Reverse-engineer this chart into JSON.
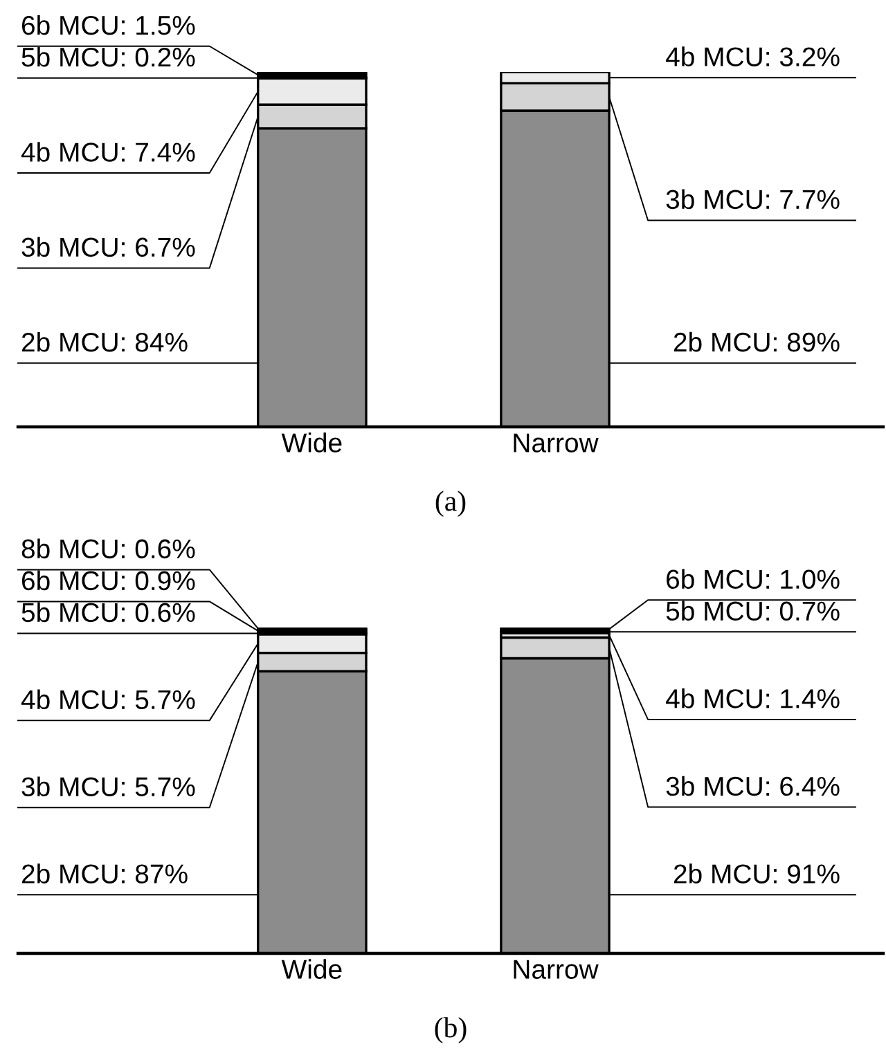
{
  "chart_data": [
    {
      "type": "bar",
      "title": "(a)",
      "categories": [
        "Wide",
        "Narrow"
      ],
      "stacked": true,
      "series": [
        {
          "color": "#8c8c8c",
          "values": [
            84,
            89
          ],
          "value_labels": [
            "2b MCU: 84%",
            "2b MCU: 89%"
          ]
        },
        {
          "color": "#d4d4d4",
          "values": [
            6.7,
            7.7
          ],
          "value_labels": [
            "3b MCU: 6.7%",
            "3b MCU: 7.7%"
          ]
        },
        {
          "color": "#ebebeb",
          "values": [
            7.4,
            3.2
          ],
          "value_labels": [
            "4b MCU: 7.4%",
            "4b MCU: 3.2%"
          ]
        },
        {
          "color": "#ffffff",
          "values": [
            0.2,
            null
          ],
          "value_labels": [
            "5b MCU: 0.2%",
            null
          ]
        },
        {
          "color": "#000000",
          "values": [
            1.5,
            null
          ],
          "value_labels": [
            "6b MCU: 1.5%",
            null
          ]
        }
      ]
    },
    {
      "type": "bar",
      "title": "(b)",
      "categories": [
        "Wide",
        "Narrow"
      ],
      "stacked": true,
      "series": [
        {
          "color": "#8c8c8c",
          "values": [
            87,
            91
          ],
          "value_labels": [
            "2b MCU: 87%",
            "2b MCU: 91%"
          ]
        },
        {
          "color": "#d4d4d4",
          "values": [
            5.7,
            6.4
          ],
          "value_labels": [
            "3b MCU: 5.7%",
            "3b MCU: 6.4%"
          ]
        },
        {
          "color": "#ebebeb",
          "values": [
            5.7,
            1.4
          ],
          "value_labels": [
            "4b MCU: 5.7%",
            "4b MCU: 1.4%"
          ]
        },
        {
          "color": "#ffffff",
          "values": [
            0.6,
            0.7
          ],
          "value_labels": [
            "5b MCU: 0.6%",
            "5b MCU: 0.7%"
          ]
        },
        {
          "color": "#000000",
          "values": [
            0.9,
            1.0
          ],
          "value_labels": [
            "6b MCU: 0.9%",
            "6b MCU: 1.0%"
          ]
        },
        {
          "color": "#000000",
          "values": [
            0.6,
            null
          ],
          "value_labels": [
            "8b MCU: 0.6%",
            null
          ]
        }
      ]
    }
  ]
}
